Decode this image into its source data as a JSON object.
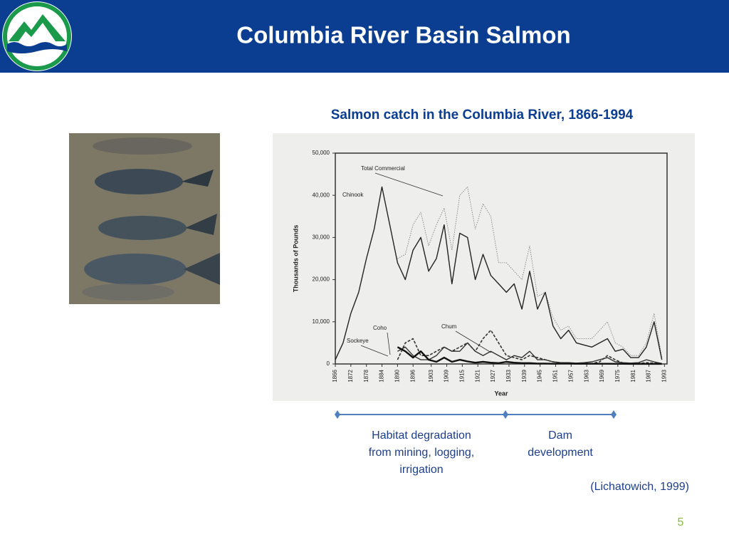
{
  "header": {
    "title": "Columbia River Basin Salmon"
  },
  "chart_data": {
    "type": "line",
    "title": "Salmon catch in the Columbia River, 1866-1994",
    "x_label": "Year",
    "y_label": "Thousands of Pounds",
    "x": [
      1866,
      1869,
      1872,
      1875,
      1878,
      1881,
      1884,
      1887,
      1890,
      1893,
      1896,
      1899,
      1902,
      1905,
      1908,
      1911,
      1914,
      1917,
      1920,
      1923,
      1926,
      1929,
      1932,
      1935,
      1938,
      1941,
      1944,
      1947,
      1950,
      1953,
      1956,
      1959,
      1962,
      1965,
      1968,
      1971,
      1974,
      1977,
      1980,
      1983,
      1986,
      1989,
      1992
    ],
    "xlim": [
      1866,
      1994
    ],
    "xticks": [
      1866,
      1872,
      1878,
      1884,
      1890,
      1896,
      1903,
      1909,
      1915,
      1921,
      1927,
      1933,
      1939,
      1945,
      1951,
      1957,
      1963,
      1969,
      1975,
      1981,
      1987,
      1993
    ],
    "ylim": [
      0,
      50000
    ],
    "yticks": [
      0,
      {
        "value": 10000,
        "label": "10,000"
      },
      {
        "value": 20000,
        "label": "20,000"
      },
      {
        "value": 30000,
        "label": "30,000"
      },
      {
        "value": 40000,
        "label": "40,000"
      },
      {
        "value": 50000,
        "label": "50,000"
      }
    ],
    "series": [
      {
        "name": "Total Commercial",
        "color": "#777777",
        "line_style": "dotted",
        "values": [
          null,
          null,
          null,
          null,
          null,
          null,
          null,
          null,
          25000,
          26000,
          33000,
          36000,
          28000,
          33000,
          37000,
          27000,
          40000,
          42000,
          32000,
          38000,
          35000,
          24000,
          24000,
          22000,
          20000,
          28000,
          16000,
          17000,
          11000,
          8000,
          9000,
          6000,
          6000,
          6000,
          8000,
          10000,
          5000,
          4000,
          2000,
          2000,
          5000,
          12000,
          1500
        ]
      },
      {
        "name": "Chinook",
        "color": "#222222",
        "line_style": "solid",
        "values": [
          1000,
          5000,
          12000,
          17000,
          25000,
          32000,
          42000,
          33000,
          24000,
          20000,
          27000,
          30000,
          22000,
          25000,
          33000,
          19000,
          31000,
          30000,
          20000,
          26000,
          21000,
          19000,
          17000,
          19000,
          13000,
          22000,
          13000,
          17000,
          9000,
          6000,
          8000,
          5000,
          4500,
          4000,
          5000,
          6000,
          3000,
          3500,
          1500,
          1500,
          4000,
          10000,
          1000
        ]
      },
      {
        "name": "Coho",
        "color": "#333333",
        "line_style": "solid",
        "values": [
          null,
          null,
          null,
          null,
          null,
          null,
          null,
          null,
          3000,
          4000,
          2000,
          1000,
          1000,
          2000,
          4000,
          3000,
          3000,
          5000,
          3000,
          2000,
          3000,
          2000,
          1000,
          2000,
          1500,
          3000,
          1000,
          1000,
          500,
          300,
          300,
          200,
          300,
          500,
          1000,
          1500,
          500,
          300,
          200,
          300,
          1000,
          500,
          100
        ]
      },
      {
        "name": "Chum",
        "color": "#333333",
        "line_style": "dashed",
        "values": [
          null,
          null,
          null,
          null,
          null,
          null,
          null,
          null,
          1000,
          5000,
          6000,
          2000,
          2000,
          3000,
          4000,
          3000,
          4000,
          5000,
          3000,
          6000,
          8000,
          5000,
          2000,
          1500,
          1000,
          2000,
          1500,
          1000,
          500,
          300,
          200,
          100,
          100,
          100,
          500,
          2000,
          1000,
          200,
          100,
          100,
          300,
          200,
          50
        ]
      },
      {
        "name": "Sockeye",
        "color": "#111111",
        "line_style": "bold",
        "values": [
          null,
          null,
          null,
          null,
          null,
          null,
          null,
          null,
          4000,
          3000,
          1500,
          3000,
          1000,
          500,
          1500,
          500,
          1000,
          600,
          300,
          500,
          300,
          200,
          500,
          300,
          200,
          200,
          100,
          100,
          50,
          100,
          100,
          50,
          50,
          50,
          50,
          50,
          30,
          30,
          20,
          20,
          20,
          20,
          10
        ]
      }
    ]
  },
  "timeline": [
    {
      "lines": [
        "Habitat degradation",
        "from mining, logging,",
        "irrigation"
      ]
    },
    {
      "lines": [
        "Dam",
        "development"
      ]
    }
  ],
  "citation": "(Lichatowich, 1999)",
  "page_number": "5"
}
